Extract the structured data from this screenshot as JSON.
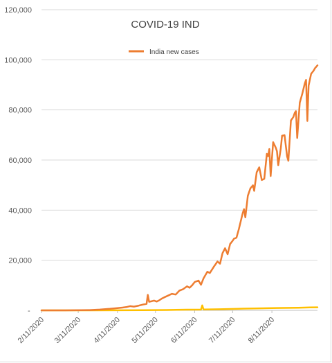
{
  "chart_data": {
    "type": "line",
    "title": "COVID-19 IND",
    "legend": {
      "position": "top",
      "entries": [
        "India new cases"
      ]
    },
    "grid": true,
    "xlim": [
      "2/11/2020",
      "9/16/2020"
    ],
    "ylim": [
      0,
      120000
    ],
    "y_ticks": [
      {
        "value": 0,
        "label": "-"
      },
      {
        "value": 20000,
        "label": "20,000"
      },
      {
        "value": 40000,
        "label": "40,000"
      },
      {
        "value": 60000,
        "label": "60,000"
      },
      {
        "value": 80000,
        "label": "80,000"
      },
      {
        "value": 100000,
        "label": "100,000"
      },
      {
        "value": 120000,
        "label": "120,000"
      }
    ],
    "x_ticks": [
      "2/11/2020",
      "3/11/2020",
      "4/11/2020",
      "5/11/2020",
      "6/11/2020",
      "7/11/2020",
      "8/11/2020"
    ],
    "series": [
      {
        "name": "India new cases",
        "color": "#ed7d31",
        "points": [
          [
            "2/11/2020",
            0
          ],
          [
            "3/1/2020",
            0
          ],
          [
            "3/20/2020",
            100
          ],
          [
            "3/28/2020",
            300
          ],
          [
            "4/5/2020",
            600
          ],
          [
            "4/11/2020",
            900
          ],
          [
            "4/15/2020",
            1100
          ],
          [
            "4/18/2020",
            1300
          ],
          [
            "4/21/2020",
            1700
          ],
          [
            "4/24/2020",
            1500
          ],
          [
            "4/28/2020",
            1900
          ],
          [
            "5/1/2020",
            2300
          ],
          [
            "5/4/2020",
            2600
          ],
          [
            "5/5/2020",
            6200
          ],
          [
            "5/6/2020",
            3400
          ],
          [
            "5/10/2020",
            3900
          ],
          [
            "5/12/2020",
            3500
          ],
          [
            "5/14/2020",
            4000
          ],
          [
            "5/16/2020",
            4700
          ],
          [
            "5/18/2020",
            5200
          ],
          [
            "5/21/2020",
            5900
          ],
          [
            "5/24/2020",
            6600
          ],
          [
            "5/27/2020",
            6300
          ],
          [
            "5/30/2020",
            7900
          ],
          [
            "6/2/2020",
            8500
          ],
          [
            "6/5/2020",
            9600
          ],
          [
            "6/7/2020",
            9000
          ],
          [
            "6/9/2020",
            10000
          ],
          [
            "6/11/2020",
            11300
          ],
          [
            "6/14/2020",
            11900
          ],
          [
            "6/16/2020",
            10200
          ],
          [
            "6/18/2020",
            12800
          ],
          [
            "6/21/2020",
            15400
          ],
          [
            "6/23/2020",
            14900
          ],
          [
            "6/26/2020",
            17300
          ],
          [
            "6/29/2020",
            19500
          ],
          [
            "7/1/2020",
            18600
          ],
          [
            "7/3/2020",
            22800
          ],
          [
            "7/5/2020",
            24800
          ],
          [
            "7/7/2020",
            22400
          ],
          [
            "7/9/2020",
            26500
          ],
          [
            "7/11/2020",
            27800
          ],
          [
            "7/12/2020",
            28600
          ],
          [
            "7/14/2020",
            29000
          ],
          [
            "7/16/2020",
            32600
          ],
          [
            "7/17/2020",
            34800
          ],
          [
            "7/19/2020",
            38900
          ],
          [
            "7/20/2020",
            40400
          ],
          [
            "7/21/2020",
            37100
          ],
          [
            "7/23/2020",
            45700
          ],
          [
            "7/25/2020",
            48700
          ],
          [
            "7/27/2020",
            49900
          ],
          [
            "7/28/2020",
            47700
          ],
          [
            "7/30/2020",
            55100
          ],
          [
            "8/1/2020",
            57100
          ],
          [
            "8/3/2020",
            52000
          ],
          [
            "8/5/2020",
            52500
          ],
          [
            "8/7/2020",
            62500
          ],
          [
            "8/8/2020",
            61500
          ],
          [
            "8/9/2020",
            64400
          ],
          [
            "8/10/2020",
            53600
          ],
          [
            "8/12/2020",
            67100
          ],
          [
            "8/14/2020",
            65000
          ],
          [
            "8/15/2020",
            63500
          ],
          [
            "8/16/2020",
            57900
          ],
          [
            "8/18/2020",
            64500
          ],
          [
            "8/19/2020",
            69700
          ],
          [
            "8/21/2020",
            69900
          ],
          [
            "8/23/2020",
            61400
          ],
          [
            "8/24/2020",
            59700
          ],
          [
            "8/26/2020",
            75800
          ],
          [
            "8/28/2020",
            77200
          ],
          [
            "8/29/2020",
            78800
          ],
          [
            "8/30/2020",
            79500
          ],
          [
            "8/31/2020",
            68800
          ],
          [
            "9/2/2020",
            82900
          ],
          [
            "9/4/2020",
            86400
          ],
          [
            "9/6/2020",
            90600
          ],
          [
            "9/7/2020",
            92000
          ],
          [
            "9/8/2020",
            75600
          ],
          [
            "9/9/2020",
            89700
          ],
          [
            "9/11/2020",
            94400
          ],
          [
            "9/13/2020",
            95700
          ],
          [
            "9/14/2020",
            96600
          ],
          [
            "9/16/2020",
            97800
          ]
        ]
      },
      {
        "name": "",
        "color": "#ffc000",
        "points": [
          [
            "2/11/2020",
            0
          ],
          [
            "3/20/2020",
            5
          ],
          [
            "4/11/2020",
            40
          ],
          [
            "5/1/2020",
            80
          ],
          [
            "5/20/2020",
            140
          ],
          [
            "6/5/2020",
            270
          ],
          [
            "6/16/2020",
            300
          ],
          [
            "6/17/2020",
            2000
          ],
          [
            "6/18/2020",
            330
          ],
          [
            "7/1/2020",
            450
          ],
          [
            "7/15/2020",
            600
          ],
          [
            "7/20/2020",
            680
          ],
          [
            "8/1/2020",
            800
          ],
          [
            "8/15/2020",
            950
          ],
          [
            "9/1/2020",
            1050
          ],
          [
            "9/10/2020",
            1150
          ],
          [
            "9/16/2020",
            1230
          ]
        ]
      }
    ]
  }
}
